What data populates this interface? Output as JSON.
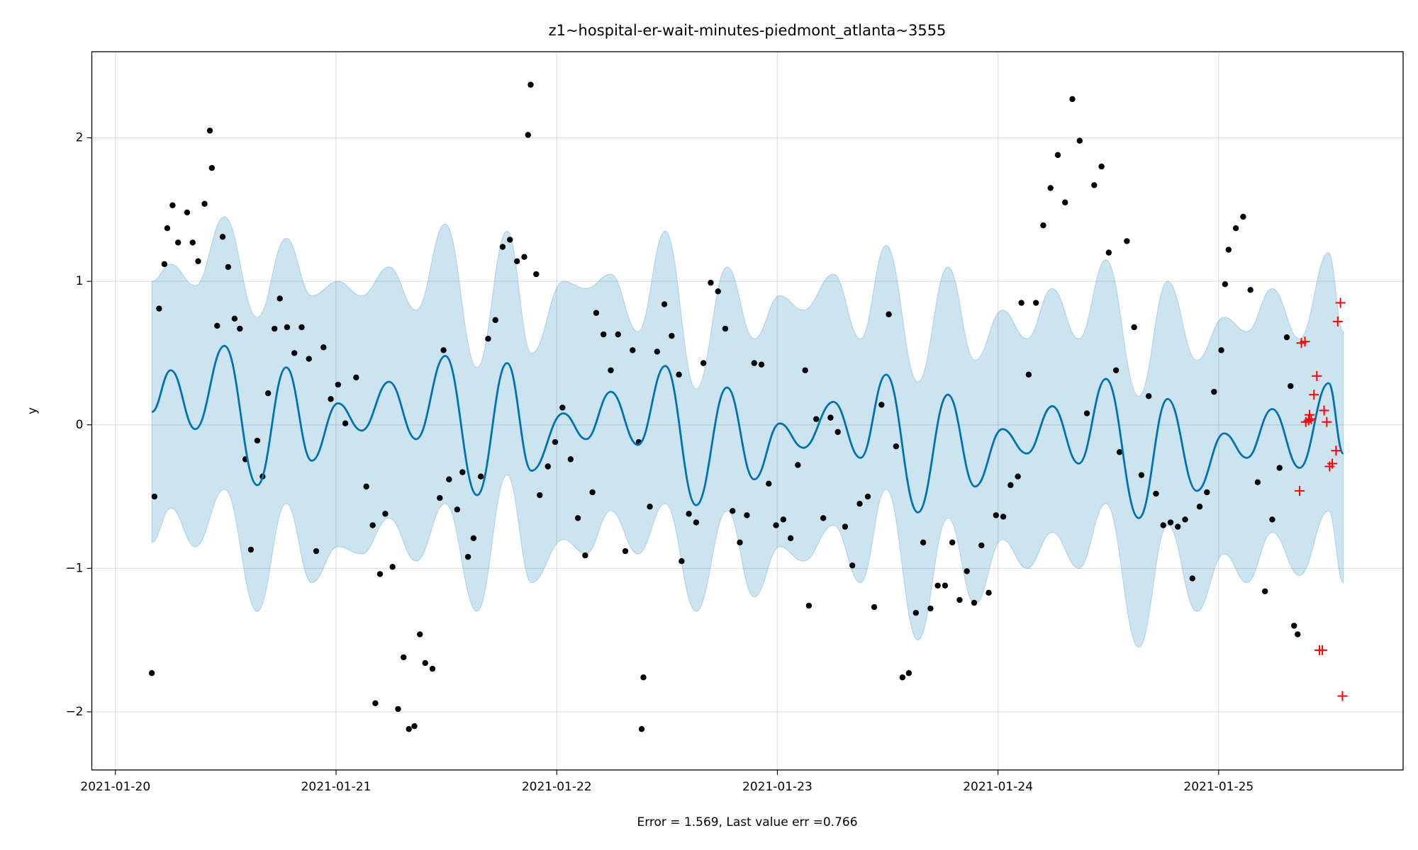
{
  "chart_data": {
    "type": "line",
    "title": "z1~hospital-er-wait-minutes-piedmont_atlanta~3555",
    "xlabel": "Error = 1.569, Last value err =0.766",
    "ylabel": "y",
    "xlim": [
      -0.107,
      5.836
    ],
    "ylim": [
      -2.405,
      2.6
    ],
    "xticks": [
      {
        "value": 0,
        "label": "2021-01-20"
      },
      {
        "value": 1,
        "label": "2021-01-21"
      },
      {
        "value": 2,
        "label": "2021-01-22"
      },
      {
        "value": 3,
        "label": "2021-01-23"
      },
      {
        "value": 4,
        "label": "2021-01-24"
      },
      {
        "value": 5,
        "label": "2021-01-25"
      }
    ],
    "yticks": [
      {
        "value": -2,
        "label": "−2"
      },
      {
        "value": -1,
        "label": "−1"
      },
      0,
      1,
      2
    ],
    "grid": true,
    "forecast": {
      "color": "#0072b2",
      "band_color": "#0072b2",
      "x": [
        0.165,
        0.251,
        0.362,
        0.494,
        0.643,
        0.774,
        0.89,
        1.009,
        1.116,
        1.24,
        1.363,
        1.495,
        1.639,
        1.775,
        1.886,
        2.03,
        2.133,
        2.245,
        2.368,
        2.492,
        2.632,
        2.772,
        2.895,
        3.011,
        3.118,
        3.254,
        3.377,
        3.493,
        3.637,
        3.773,
        3.896,
        4.02,
        4.131,
        4.246,
        4.366,
        4.489,
        4.638,
        4.769,
        4.901,
        5.025,
        5.128,
        5.243,
        5.367,
        5.498,
        5.565
      ],
      "values": [
        0.09,
        0.38,
        -0.03,
        0.55,
        -0.42,
        0.4,
        -0.25,
        0.15,
        -0.04,
        0.3,
        -0.1,
        0.48,
        -0.49,
        0.43,
        -0.32,
        0.08,
        -0.1,
        0.23,
        -0.14,
        0.41,
        -0.56,
        0.26,
        -0.38,
        0.01,
        -0.16,
        0.16,
        -0.23,
        0.35,
        -0.61,
        0.21,
        -0.43,
        -0.03,
        -0.2,
        0.13,
        -0.27,
        0.32,
        -0.65,
        0.18,
        -0.46,
        -0.06,
        -0.23,
        0.11,
        -0.3,
        0.29,
        -0.2
      ],
      "upper": [
        1.0,
        1.12,
        0.97,
        1.45,
        0.75,
        1.3,
        0.9,
        1.0,
        0.9,
        1.1,
        0.8,
        1.4,
        0.4,
        1.35,
        0.5,
        1.0,
        0.95,
        1.05,
        0.65,
        1.35,
        0.25,
        1.1,
        0.6,
        0.9,
        0.8,
        1.05,
        0.6,
        1.25,
        0.3,
        1.1,
        0.45,
        0.8,
        0.6,
        0.95,
        0.6,
        1.15,
        0.2,
        1.0,
        0.45,
        0.75,
        0.65,
        0.95,
        0.6,
        1.2,
        0.65
      ],
      "lower": [
        -0.82,
        -0.58,
        -0.85,
        -0.45,
        -1.3,
        -0.55,
        -1.1,
        -0.85,
        -0.9,
        -0.65,
        -0.95,
        -0.55,
        -1.3,
        -0.35,
        -1.1,
        -0.8,
        -0.9,
        -0.6,
        -0.9,
        -0.55,
        -1.3,
        -0.6,
        -1.2,
        -0.85,
        -0.95,
        -0.7,
        -1.1,
        -0.45,
        -1.5,
        -0.65,
        -1.25,
        -0.8,
        -1.0,
        -0.75,
        -1.0,
        -0.55,
        -1.55,
        -0.7,
        -1.3,
        -0.9,
        -1.1,
        -0.75,
        -1.05,
        -0.6,
        -1.1
      ]
    },
    "observed": {
      "color": "#000000",
      "x": [
        0.165,
        0.177,
        0.198,
        0.222,
        0.235,
        0.259,
        0.284,
        0.325,
        0.35,
        0.375,
        0.404,
        0.428,
        0.437,
        0.461,
        0.486,
        0.511,
        0.54,
        0.564,
        0.589,
        0.614,
        0.643,
        0.667,
        0.692,
        0.721,
        0.745,
        0.778,
        0.811,
        0.844,
        0.877,
        0.91,
        0.943,
        0.976,
        1.009,
        1.042,
        1.091,
        1.137,
        1.166,
        1.178,
        1.199,
        1.223,
        1.256,
        1.281,
        1.306,
        1.33,
        1.355,
        1.38,
        1.404,
        1.437,
        1.47,
        1.487,
        1.512,
        1.549,
        1.573,
        1.598,
        1.623,
        1.656,
        1.689,
        1.722,
        1.755,
        1.788,
        1.82,
        1.853,
        1.87,
        1.882,
        1.907,
        1.923,
        1.96,
        1.993,
        2.026,
        2.063,
        2.096,
        2.129,
        2.162,
        2.179,
        2.212,
        2.245,
        2.278,
        2.311,
        2.344,
        2.372,
        2.385,
        2.393,
        2.422,
        2.455,
        2.488,
        2.521,
        2.554,
        2.566,
        2.599,
        2.632,
        2.665,
        2.698,
        2.731,
        2.764,
        2.797,
        2.83,
        2.862,
        2.895,
        2.928,
        2.961,
        2.994,
        3.027,
        3.06,
        3.093,
        3.126,
        3.143,
        3.176,
        3.208,
        3.241,
        3.274,
        3.307,
        3.34,
        3.373,
        3.41,
        3.439,
        3.472,
        3.505,
        3.538,
        3.567,
        3.596,
        3.628,
        3.661,
        3.694,
        3.727,
        3.76,
        3.793,
        3.826,
        3.859,
        3.892,
        3.925,
        3.958,
        3.991,
        4.024,
        4.057,
        4.09,
        4.106,
        4.139,
        4.172,
        4.205,
        4.238,
        4.271,
        4.304,
        4.337,
        4.37,
        4.403,
        4.436,
        4.469,
        4.502,
        4.535,
        4.551,
        4.584,
        4.617,
        4.65,
        4.683,
        4.716,
        4.749,
        4.782,
        4.815,
        4.848,
        4.881,
        4.914,
        4.947,
        4.979,
        5.012,
        5.029,
        5.045,
        5.078,
        5.111,
        5.144,
        5.177,
        5.21,
        5.243,
        5.276,
        5.309,
        5.326,
        5.342,
        5.358
      ],
      "values": [
        -1.73,
        -0.5,
        0.81,
        1.12,
        1.37,
        1.53,
        1.27,
        1.48,
        1.27,
        1.14,
        1.54,
        2.05,
        1.79,
        0.69,
        1.31,
        1.1,
        0.74,
        0.67,
        -0.24,
        -0.87,
        -0.11,
        -0.36,
        0.22,
        0.67,
        0.88,
        0.68,
        0.5,
        0.68,
        0.46,
        -0.88,
        0.54,
        0.18,
        0.28,
        0.01,
        0.33,
        -0.43,
        -0.7,
        -1.94,
        -1.04,
        -0.62,
        -0.99,
        -1.98,
        -1.62,
        -2.12,
        -2.1,
        -1.46,
        -1.66,
        -1.7,
        -0.51,
        0.52,
        -0.38,
        -0.59,
        -0.33,
        -0.92,
        -0.79,
        -0.36,
        0.6,
        0.73,
        1.24,
        1.29,
        1.14,
        1.17,
        2.02,
        2.37,
        1.05,
        -0.49,
        -0.29,
        -0.12,
        0.12,
        -0.24,
        -0.65,
        -0.91,
        -0.47,
        0.78,
        0.63,
        0.38,
        0.63,
        -0.88,
        0.52,
        -0.12,
        -2.12,
        -1.76,
        -0.57,
        0.51,
        0.84,
        0.62,
        0.35,
        -0.95,
        -0.62,
        -0.68,
        0.43,
        0.99,
        0.93,
        0.67,
        -0.6,
        -0.82,
        -0.63,
        0.43,
        0.42,
        -0.41,
        -0.7,
        -0.66,
        -0.79,
        -0.28,
        0.38,
        -1.26,
        0.04,
        -0.65,
        0.05,
        -0.05,
        -0.71,
        -0.98,
        -0.55,
        -0.5,
        -1.27,
        0.14,
        0.77,
        -0.15,
        -1.76,
        -1.73,
        -1.31,
        -0.82,
        -1.28,
        -1.12,
        -1.12,
        -0.82,
        -1.22,
        -1.02,
        -1.24,
        -0.84,
        -1.17,
        -0.63,
        -0.64,
        -0.42,
        -0.36,
        0.85,
        0.35,
        0.85,
        1.39,
        1.65,
        1.88,
        1.55,
        2.27,
        1.98,
        0.08,
        1.67,
        1.8,
        1.2,
        0.38,
        -0.19,
        1.28,
        0.68,
        -0.35,
        0.2,
        -0.48,
        -0.7,
        -0.68,
        -0.71,
        -0.66,
        -1.07,
        -0.57,
        -0.47,
        0.23,
        0.52,
        0.98,
        1.22,
        1.37,
        1.45,
        0.94,
        -0.4,
        -1.16,
        -0.66,
        -0.3,
        0.61,
        0.27,
        -1.4,
        -1.46
      ]
    },
    "test": {
      "color": "#ff0000",
      "x": [
        5.367,
        5.375,
        5.391,
        5.395,
        5.408,
        5.412,
        5.42,
        5.432,
        5.445,
        5.457,
        5.47,
        5.478,
        5.49,
        5.503,
        5.515,
        5.532,
        5.54,
        5.552,
        5.561
      ],
      "values": [
        -0.46,
        0.57,
        0.58,
        0.02,
        0.03,
        0.07,
        0.04,
        0.21,
        0.34,
        -1.57,
        -1.57,
        0.1,
        0.02,
        -0.29,
        -0.27,
        -0.18,
        0.72,
        0.85,
        -1.89
      ]
    }
  }
}
